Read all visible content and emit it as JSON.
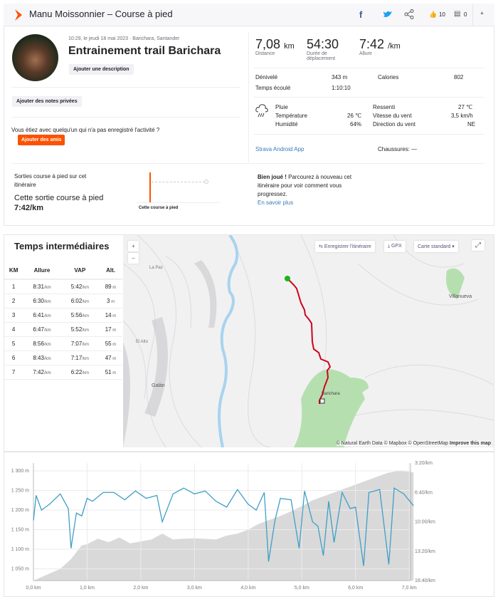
{
  "header": {
    "title": "Manu Moissonnier – Course à pied",
    "kudos": "10",
    "comments": "0",
    "icons": [
      "strava-logo-icon",
      "facebook-icon",
      "twitter-icon",
      "share-icon",
      "thumbs-up-icon",
      "comment-icon",
      "caret-up-icon"
    ]
  },
  "activity": {
    "datetime": "10:29, le jeudi 18 mai 2023 · Barichara, Santander",
    "name": "Entrainement trail Barichara",
    "add_description": "Ajouter une description",
    "add_notes": "Ajouter des notes privées",
    "with_someone": "Vous étiez avec quelqu'un qui n'a pas enregistré l'activité ?",
    "add_friends": "Ajouter des amis"
  },
  "stats": {
    "distance": "7,08",
    "distance_unit": "km",
    "distance_label": "Distance",
    "moving_time": "54:30",
    "moving_time_label": "Durée de déplacement",
    "pace": "7:42",
    "pace_unit": "/km",
    "pace_label": "Allure",
    "elevation_label": "Dénivelé",
    "elevation": "343 m",
    "calories_label": "Calories",
    "calories": "802",
    "elapsed_label": "Temps écoulé",
    "elapsed": "1:10:10"
  },
  "weather": {
    "icon": "rain-icon",
    "condition": "Pluie",
    "temp_label": "Température",
    "temp": "26 ℃",
    "humidity_label": "Humidité",
    "humidity": "64%",
    "feels_label": "Ressenti",
    "feels": "27 ℃",
    "wind_label": "Vitesse du vent",
    "wind": "3,5 km/h",
    "wind_dir_label": "Direction du vent",
    "wind_dir": "NE"
  },
  "device": "Strava Android App",
  "shoes": "Chaussures: —",
  "segment": {
    "title": "Sorties course à pied sur cet itinéraire",
    "this_run": "Cette sortie course à pied",
    "pace": "7:42/km",
    "chart_label": "Cette course à pied",
    "message_bold": "Bien joué !",
    "message": " Parcourez à nouveau cet itinéraire pour voir comment vous progressez.",
    "learn_more": "En savoir plus",
    "accent": "#fc5200"
  },
  "splits": {
    "title": "Temps intermédiaires",
    "headers": [
      "KM",
      "Allure",
      "VAP",
      "Alt."
    ],
    "rows": [
      [
        "1",
        "8:31",
        "5:42",
        "89"
      ],
      [
        "2",
        "6:30",
        "6:02",
        "3"
      ],
      [
        "3",
        "6:41",
        "5:56",
        "14"
      ],
      [
        "4",
        "6:47",
        "5:52",
        "17"
      ],
      [
        "5",
        "8:56",
        "7:07",
        "55"
      ],
      [
        "6",
        "8:43",
        "7:17",
        "47"
      ],
      [
        "7",
        "7:42",
        "6:22",
        "51"
      ]
    ],
    "pace_unit": "/km",
    "alt_unit": "m"
  },
  "map": {
    "zoom_in": "+",
    "zoom_out": "−",
    "save_route": "Enregistrer l'itinéraire",
    "gpx": "GPX",
    "style": "Carte standard",
    "attribution": "© Natural Earth Data © Mapbox © OpenStreetMap",
    "improve": "Improve this map",
    "places": [
      "La Paz",
      "El Alto",
      "Galán",
      "Villanueva",
      "Barichara"
    ],
    "route_color": "#d0021b"
  },
  "chart_data": {
    "type": "area",
    "xlabel": "",
    "ylabel": "",
    "x_ticks": [
      "0,0 km",
      "1,0 km",
      "2,0 km",
      "3,0 km",
      "4,0 km",
      "5,0 km",
      "6,0 km",
      "7,0 km"
    ],
    "y_left_ticks": [
      "1 300 m",
      "1 250 m",
      "1 200 m",
      "1 150 m",
      "1 100 m",
      "1 050 m"
    ],
    "y_right_ticks": [
      "3:20/km",
      "6:40/km",
      "10:00/km",
      "13:20/km",
      "16:40/km"
    ],
    "xlim": [
      0,
      7.08
    ],
    "ylim_left": [
      1020,
      1320
    ],
    "ylim_right_sec_per_km": [
      200,
      1000
    ],
    "series": [
      {
        "kind": "elevation",
        "color": "#d9d9d9",
        "x": [
          0,
          0.25,
          0.5,
          0.7,
          0.9,
          1.0,
          1.2,
          1.4,
          1.6,
          1.8,
          2.0,
          2.2,
          2.4,
          2.6,
          2.8,
          3.0,
          3.4,
          3.6,
          3.8,
          4.0,
          4.2,
          4.4,
          4.6,
          4.8,
          5.0,
          5.2,
          5.4,
          5.6,
          5.8,
          6.0,
          6.2,
          6.4,
          6.6,
          6.8,
          7.0,
          7.08
        ],
        "y": [
          1020,
          1035,
          1050,
          1075,
          1110,
          1113,
          1127,
          1118,
          1130,
          1115,
          1120,
          1125,
          1140,
          1125,
          1127,
          1128,
          1125,
          1135,
          1140,
          1150,
          1165,
          1175,
          1185,
          1197,
          1210,
          1225,
          1235,
          1245,
          1255,
          1265,
          1275,
          1285,
          1295,
          1300,
          1298,
          1296
        ]
      },
      {
        "kind": "pace",
        "color": "#3f9fc6",
        "x": [
          0,
          0.05,
          0.15,
          0.3,
          0.5,
          0.65,
          0.7,
          0.8,
          0.9,
          1.0,
          1.1,
          1.3,
          1.5,
          1.7,
          1.9,
          2.1,
          2.3,
          2.4,
          2.6,
          2.8,
          3.0,
          3.2,
          3.4,
          3.6,
          3.8,
          4.0,
          4.15,
          4.3,
          4.38,
          4.5,
          4.6,
          4.8,
          4.95,
          5.05,
          5.2,
          5.3,
          5.4,
          5.5,
          5.6,
          5.75,
          5.9,
          6.0,
          6.15,
          6.25,
          6.45,
          6.62,
          6.72,
          6.9,
          7.08
        ],
        "y": [
          "9:50",
          "7:00",
          "8:40",
          "8:00",
          "6:50",
          "8:30",
          "13:00",
          "9:00",
          "9:20",
          "7:20",
          "7:40",
          "6:40",
          "6:40",
          "7:30",
          "6:30",
          "7:20",
          "7:00",
          "10:00",
          "6:50",
          "6:10",
          "6:50",
          "6:30",
          "7:40",
          "8:20",
          "6:20",
          "8:00",
          "8:40",
          "6:40",
          "14:30",
          "9:50",
          "7:20",
          "7:30",
          "13:00",
          "6:30",
          "10:00",
          "10:30",
          "13:50",
          "7:40",
          "12:20",
          "6:40",
          "8:30",
          "8:20",
          "15:00",
          "6:40",
          "6:20",
          "14:50",
          "6:10",
          "6:50",
          "8:10"
        ]
      }
    ],
    "grid": true
  }
}
